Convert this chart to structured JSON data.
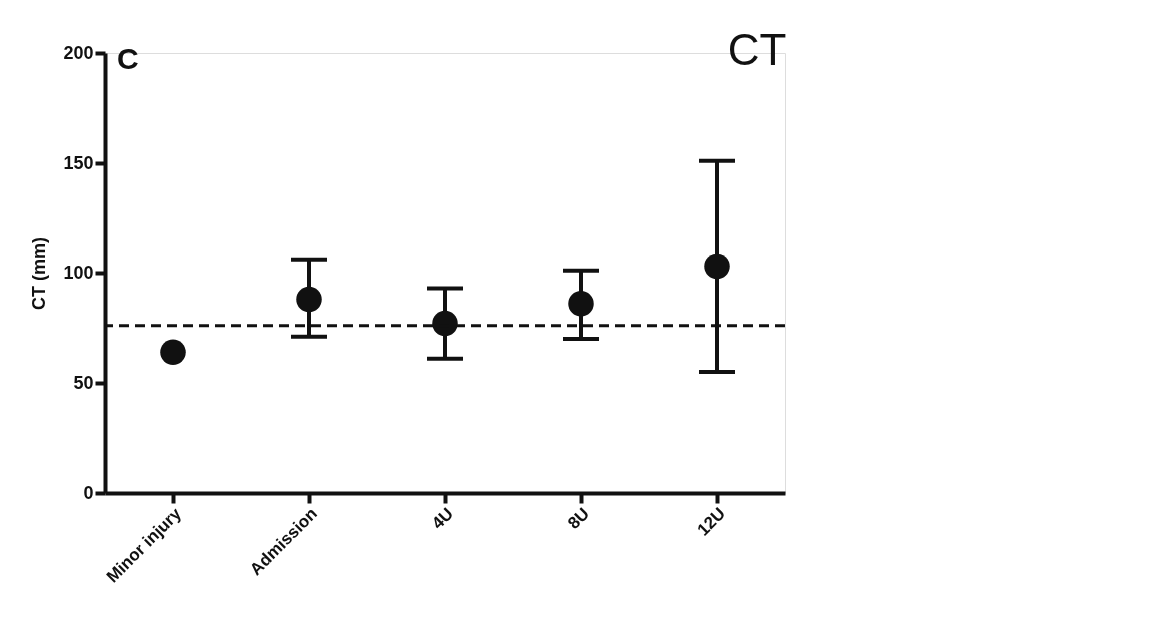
{
  "chart_data": {
    "type": "scatter",
    "title": "CT",
    "ylabel": "CT (mm)",
    "annotations": [
      "C"
    ],
    "categories": [
      "Minor injury",
      "Admission",
      "4U",
      "8U",
      "12U"
    ],
    "series": [
      {
        "color": "#111111",
        "values": [
          64,
          88,
          77,
          86,
          103
        ],
        "errors": [
          null,
          [
            71,
            106
          ],
          [
            61,
            93
          ],
          [
            70,
            101
          ],
          [
            55,
            151
          ]
        ]
      }
    ],
    "ylim": [
      0,
      200
    ],
    "yticks": [
      0,
      50,
      100,
      150,
      200
    ],
    "ref_lines": [
      {
        "axis": "y",
        "value": 76,
        "line_style": "dashed"
      }
    ],
    "grid": false
  }
}
